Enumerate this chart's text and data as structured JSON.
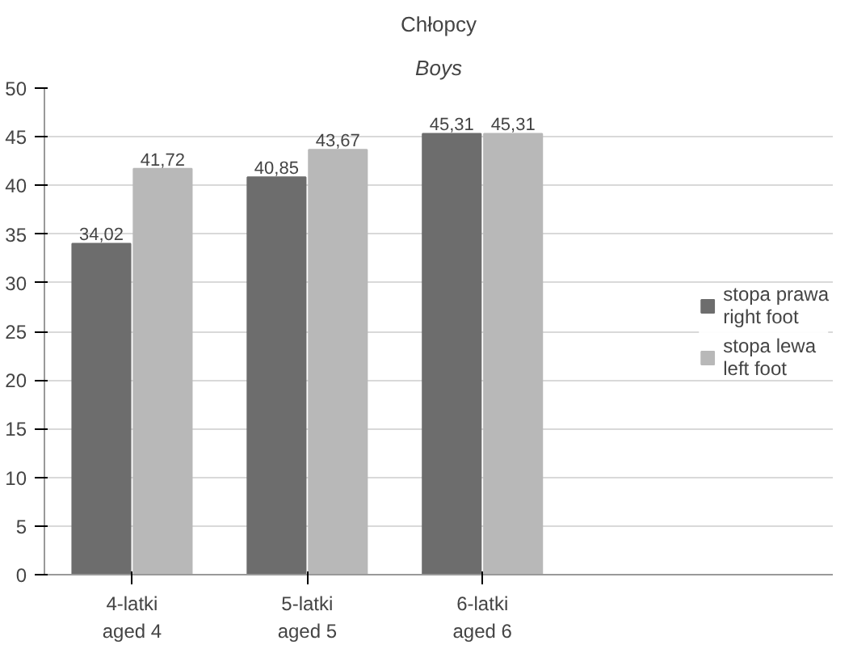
{
  "chart_data": {
    "type": "bar",
    "title": "Chłopcy",
    "subtitle": "Boys",
    "categories": [
      "4-latki\naged 4",
      "5-latki\naged 5",
      "6-latki\naged 6"
    ],
    "series": [
      {
        "name": "stopa prawa\nright foot",
        "color": "#6d6d6d",
        "values": [
          34.02,
          40.85,
          45.31
        ],
        "value_labels": [
          "34,02",
          "40,85",
          "45,31"
        ]
      },
      {
        "name": "stopa lewa\nleft foot",
        "color": "#b8b8b8",
        "values": [
          41.72,
          43.67,
          45.31
        ],
        "value_labels": [
          "41,72",
          "43,67",
          "45,31"
        ]
      }
    ],
    "ylim": [
      0,
      50
    ],
    "yticks": [
      0,
      5,
      10,
      15,
      20,
      25,
      30,
      35,
      40,
      45,
      50
    ],
    "grid": "y",
    "legend": "right"
  }
}
